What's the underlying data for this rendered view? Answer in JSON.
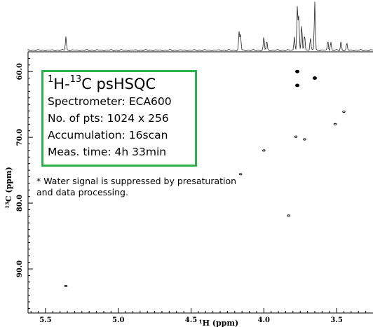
{
  "chart_data": {
    "type": "scatter",
    "title": "",
    "xlabel": "¹H (ppm)",
    "ylabel": "¹³C (ppm)",
    "xlim": [
      5.62,
      3.25
    ],
    "ylim": [
      57.0,
      96.7
    ],
    "x_ticks": [
      "5.5",
      "5.0",
      "4.5",
      "4.0",
      "3.5"
    ],
    "y_ticks": [
      "60.0",
      "70.0",
      "80.0",
      "90.0"
    ],
    "cross_peaks": [
      {
        "h": 5.36,
        "c": 92.6,
        "size": "small"
      },
      {
        "h": 4.16,
        "c": 75.6,
        "size": "small"
      },
      {
        "h": 4.0,
        "c": 72.0,
        "size": "small"
      },
      {
        "h": 3.77,
        "c": 60.0,
        "size": "large"
      },
      {
        "h": 3.77,
        "c": 62.1,
        "size": "large"
      },
      {
        "h": 3.65,
        "c": 61.0,
        "size": "large"
      },
      {
        "h": 3.78,
        "c": 69.9,
        "size": "small"
      },
      {
        "h": 3.72,
        "c": 70.3,
        "size": "small"
      },
      {
        "h": 3.51,
        "c": 68.0,
        "size": "small"
      },
      {
        "h": 3.45,
        "c": 66.1,
        "size": "small"
      },
      {
        "h": 3.83,
        "c": 81.9,
        "size": "small"
      }
    ],
    "projection_1h": [
      {
        "h": 5.36,
        "height": 20
      },
      {
        "h": 4.17,
        "height": 26
      },
      {
        "h": 4.16,
        "height": 22
      },
      {
        "h": 4.0,
        "height": 19
      },
      {
        "h": 3.98,
        "height": 14
      },
      {
        "h": 3.79,
        "height": 20
      },
      {
        "h": 3.77,
        "height": 62
      },
      {
        "h": 3.76,
        "height": 48
      },
      {
        "h": 3.74,
        "height": 36
      },
      {
        "h": 3.72,
        "height": 24
      },
      {
        "h": 3.68,
        "height": 18
      },
      {
        "h": 3.65,
        "height": 70
      },
      {
        "h": 3.56,
        "height": 14
      },
      {
        "h": 3.54,
        "height": 12
      },
      {
        "h": 3.47,
        "height": 13
      },
      {
        "h": 3.43,
        "height": 10
      }
    ],
    "annotations": [
      "¹H-¹³C psHSQC",
      "Spectrometer: ECA600",
      "No. of pts: 1024 x 256",
      "Accumulation: 16scan",
      "Meas. time: 4h 33min",
      "* Water signal is suppressed by presaturation and data processing."
    ],
    "grid": false,
    "legend": "none"
  },
  "info": {
    "title_prefix": "H-",
    "title_mid": "C psHSQC",
    "sup1": "1",
    "sup2": "13",
    "spectrometer": "Spectrometer: ECA600",
    "points": "No. of pts: 1024 x 256",
    "accumulation": "Accumulation: 16scan",
    "meas_time": "Meas. time: 4h 33min"
  },
  "note": "* Water signal is suppressed by presaturation and data processing.",
  "colors": {
    "box_border": "#2bb24c",
    "peak": "#000000",
    "frame": "#000000",
    "projection": "#222222"
  }
}
